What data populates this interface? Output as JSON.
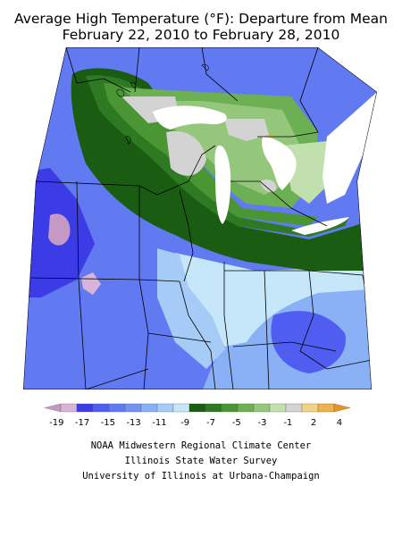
{
  "title": {
    "line1": "Average High Temperature (°F): Departure from Mean",
    "line2": "February 22, 2010 to February 28, 2010"
  },
  "map": {
    "region": "Midwest United States",
    "variable": "average high temperature departure from mean",
    "units": "°F",
    "dominant_pattern": "below-normal across region; most negative in southwest, near normal in northeast"
  },
  "legend": {
    "tick_labels": [
      "-19",
      "-17",
      "-15",
      "-13",
      "-11",
      "-9",
      "-7",
      "-5",
      "-3",
      "-1",
      "2",
      "4"
    ],
    "bins": [
      {
        "color": "#c49ac4"
      },
      {
        "color": "#d9b4d9"
      },
      {
        "color": "#3c3ce6"
      },
      {
        "color": "#4f5ef0"
      },
      {
        "color": "#617af2"
      },
      {
        "color": "#7592f2"
      },
      {
        "color": "#8ab0f5"
      },
      {
        "color": "#a6cbf7"
      },
      {
        "color": "#c6e6fa"
      },
      {
        "color": "#1a5c12"
      },
      {
        "color": "#2e7a22"
      },
      {
        "color": "#4a9635"
      },
      {
        "color": "#6db054"
      },
      {
        "color": "#94c77c"
      },
      {
        "color": "#c2e0ad"
      },
      {
        "color": "#d3d3d3"
      },
      {
        "color": "#f0d28a"
      },
      {
        "color": "#eeb050"
      },
      {
        "color": "#e69422"
      }
    ]
  },
  "credits": {
    "line1": "NOAA Midwestern Regional Climate Center",
    "line2": "Illinois State Water Survey",
    "line3": "University of Illinois at Urbana-Champaign"
  }
}
